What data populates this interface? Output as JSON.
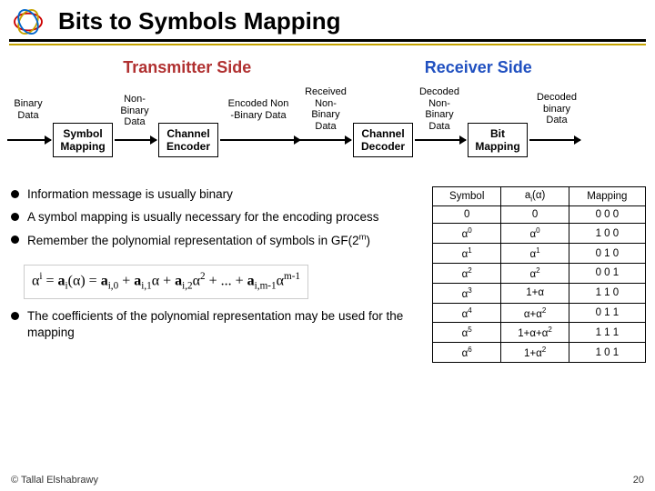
{
  "title": "Bits to Symbols Mapping",
  "sides": {
    "tx": "Transmitter Side",
    "rx": "Receiver Side"
  },
  "labels": {
    "binary_data": "Binary\nData",
    "non_binary": "Non-\nBinary\nData",
    "encoded": "Encoded Non\n-Binary Data",
    "received": "Received\nNon-\nBinary\nData",
    "decoded_nb": "Decoded\nNon-\nBinary\nData",
    "decoded_b": "Decoded\nbinary\nData"
  },
  "boxes": {
    "sym_map": "Symbol\nMapping",
    "ch_enc": "Channel\nEncoder",
    "ch_dec": "Channel\nDecoder",
    "bit_map": "Bit\nMapping"
  },
  "bullets": [
    "Information message is usually binary",
    "A symbol mapping is usually necessary for the encoding process",
    "Remember the polynomial representation of symbols in GF(2^m)",
    "The coefficients of the polynomial representation may be used for the mapping"
  ],
  "formula_html": "&alpha;<sup>i</sup> = <b>a</b><sub>i</sub>(&alpha;) = <b>a</b><sub>i,0</sub> + <b>a</b><sub>i,1</sub>&alpha; + <b>a</b><sub>i,2</sub>&alpha;<sup>2</sup> + ... + <b>a</b><sub>i,m-1</sub>&alpha;<sup>m-1</sup>",
  "table": {
    "headers": [
      "Symbol",
      "a<sub>i</sub>(&alpha;)",
      "Mapping"
    ],
    "rows": [
      [
        "0",
        "0",
        "0 0 0"
      ],
      [
        "&alpha;<sup>0</sup>",
        "&alpha;<sup>0</sup>",
        "1 0 0"
      ],
      [
        "&alpha;<sup>1</sup>",
        "&alpha;<sup>1</sup>",
        "0 1 0"
      ],
      [
        "&alpha;<sup>2</sup>",
        "&alpha;<sup>2</sup>",
        "0 0 1"
      ],
      [
        "&alpha;<sup>3</sup>",
        "1+&alpha;",
        "1 1 0"
      ],
      [
        "&alpha;<sup>4</sup>",
        "&alpha;+&alpha;<sup>2</sup>",
        "0 1 1"
      ],
      [
        "&alpha;<sup>5</sup>",
        "1+&alpha;+&alpha;<sup>2</sup>",
        "1 1 1"
      ],
      [
        "&alpha;<sup>6</sup>",
        "1+&alpha;<sup>2</sup>",
        "1 0 1"
      ]
    ]
  },
  "footer": {
    "copyright": "© Tallal Elshabrawy",
    "page": "20"
  },
  "colors": {
    "accent_yellow": "#c5a300",
    "tx": "#b03030",
    "rx": "#2050c0"
  }
}
